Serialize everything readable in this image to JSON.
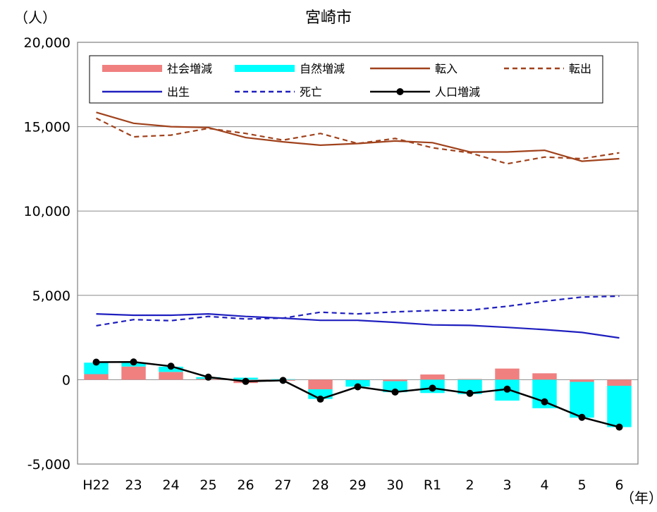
{
  "chart_data": {
    "type": "bar",
    "title": "宮崎市",
    "ylabel": "（人）",
    "xlabel": "（年）",
    "ylim": [
      -5000,
      20000
    ],
    "yticks": [
      -5000,
      0,
      5000,
      10000,
      15000,
      20000
    ],
    "ytick_labels": [
      "-5,000",
      "0",
      "5,000",
      "10,000",
      "15,000",
      "20,000"
    ],
    "categories": [
      "H22",
      "23",
      "24",
      "25",
      "26",
      "27",
      "28",
      "29",
      "30",
      "R1",
      "2",
      "3",
      "4",
      "5",
      "6"
    ],
    "grid": true,
    "legend_position": "top",
    "series": [
      {
        "name": "社会増減",
        "kind": "bar",
        "color": "#f08080",
        "values": [
          330,
          780,
          460,
          50,
          -200,
          -60,
          -570,
          -20,
          -90,
          310,
          40,
          660,
          380,
          -130,
          -360
        ]
      },
      {
        "name": "自然増減",
        "kind": "bar",
        "color": "#00ffff",
        "values": [
          680,
          240,
          310,
          100,
          120,
          30,
          -570,
          -390,
          -650,
          -790,
          -850,
          -1240,
          -1690,
          -2120,
          -2450
        ]
      },
      {
        "name": "転入",
        "kind": "line",
        "color": "#a0421c",
        "dash": "solid",
        "values": [
          15850,
          15200,
          15000,
          14950,
          14350,
          14100,
          13900,
          14000,
          14150,
          14050,
          13500,
          13500,
          13600,
          12950,
          13100
        ]
      },
      {
        "name": "転出",
        "kind": "line",
        "color": "#a0421c",
        "dash": "dashed",
        "values": [
          15500,
          14400,
          14500,
          14900,
          14600,
          14200,
          14600,
          14000,
          14300,
          13750,
          13450,
          12800,
          13200,
          13100,
          13450
        ]
      },
      {
        "name": "出生",
        "kind": "line",
        "color": "#1f1fbf",
        "dash": "solid",
        "values": [
          3900,
          3820,
          3820,
          3900,
          3750,
          3650,
          3520,
          3520,
          3400,
          3250,
          3220,
          3100,
          2970,
          2800,
          2480
        ]
      },
      {
        "name": "死亡",
        "kind": "line",
        "color": "#1f1fbf",
        "dash": "dashed",
        "values": [
          3200,
          3560,
          3500,
          3750,
          3600,
          3650,
          4000,
          3900,
          4020,
          4100,
          4120,
          4350,
          4650,
          4900,
          4950
        ]
      },
      {
        "name": "人口増減",
        "kind": "line-marker",
        "color": "#000000",
        "dash": "solid",
        "values": [
          1040,
          1050,
          800,
          150,
          -100,
          -40,
          -1150,
          -420,
          -730,
          -500,
          -810,
          -560,
          -1310,
          -2230,
          -2810
        ]
      }
    ]
  }
}
